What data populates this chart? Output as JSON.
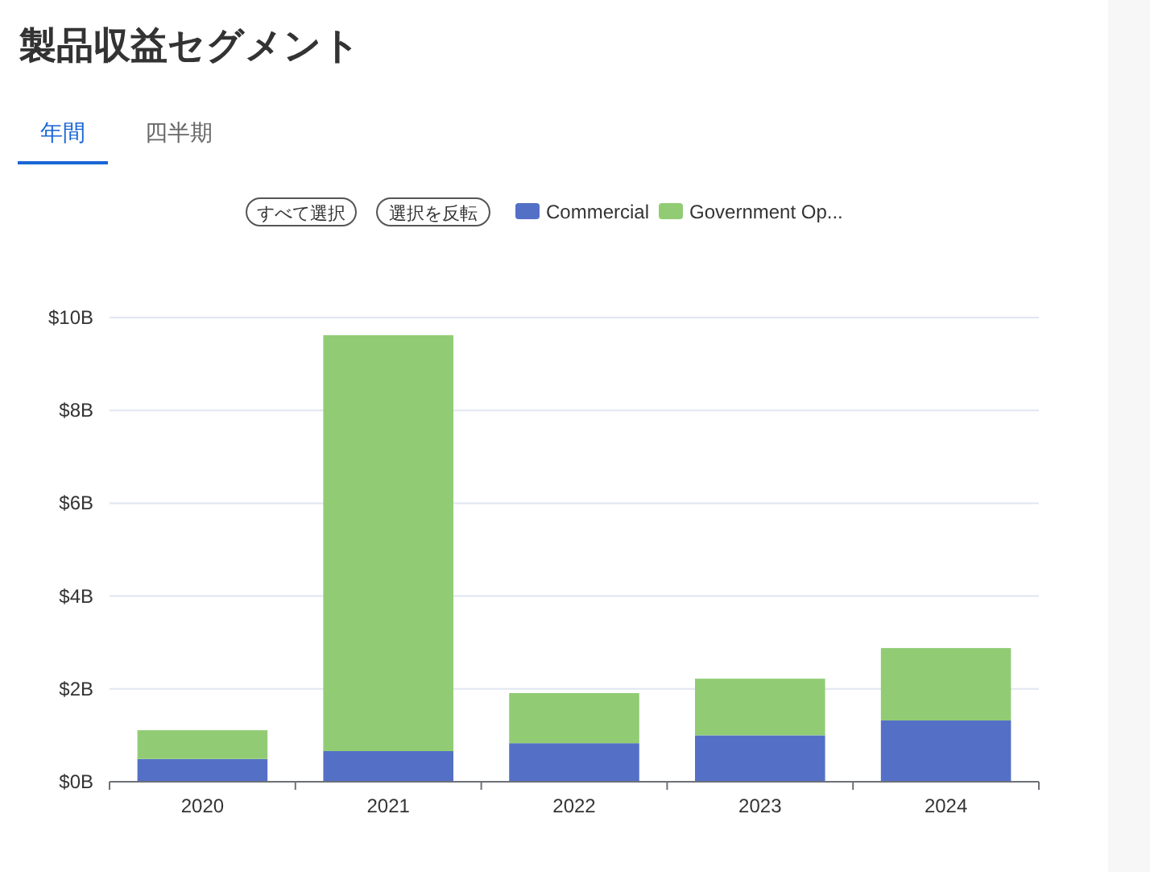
{
  "chart_data": {
    "type": "bar",
    "title": "製品収益セグメント",
    "annotations": [
      "年間",
      "四半期",
      "すべて選択",
      "選択を反転"
    ],
    "categories": [
      "2020",
      "2021",
      "2022",
      "2023",
      "2024"
    ],
    "stacked": true,
    "series": [
      {
        "name": "Commercial",
        "color": "#5470c6",
        "values": [
          0.49,
          0.66,
          0.83,
          1.0,
          1.32
        ]
      },
      {
        "name": "Government Op...",
        "color": "#91cc75",
        "values": [
          0.62,
          8.96,
          1.08,
          1.22,
          1.56
        ]
      }
    ],
    "ylim": [
      0,
      10
    ],
    "yticks": [
      {
        "value": 0,
        "label": "$0B"
      },
      {
        "value": 2,
        "label": "$2B"
      },
      {
        "value": 4,
        "label": "$4B"
      },
      {
        "value": 6,
        "label": "$6B"
      },
      {
        "value": 8,
        "label": "$8B"
      },
      {
        "value": 10,
        "label": "$10B"
      }
    ],
    "grid": "y",
    "legend": "top"
  }
}
